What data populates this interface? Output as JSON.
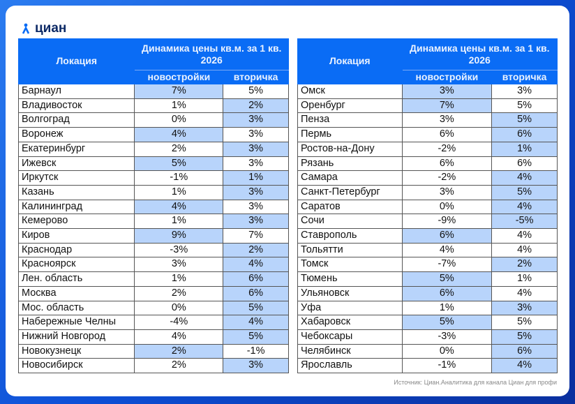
{
  "logo": {
    "text": "циан",
    "icon": "cian-logo-icon"
  },
  "colors": {
    "header": "#0a6cf5",
    "highlight": "#b8d4fb"
  },
  "header": {
    "location": "Локация",
    "dynamics": "Динамика цены кв.м. за 1 кв. 2026",
    "new": "новостройки",
    "secondary": "вторичка"
  },
  "left_table": [
    {
      "city": "Барнаул",
      "new": "7%",
      "sec": "5%",
      "hl": "new"
    },
    {
      "city": "Владивосток",
      "new": "1%",
      "sec": "2%",
      "hl": "sec"
    },
    {
      "city": "Волгоград",
      "new": "0%",
      "sec": "3%",
      "hl": "sec"
    },
    {
      "city": "Воронеж",
      "new": "4%",
      "sec": "3%",
      "hl": "new"
    },
    {
      "city": "Екатеринбург",
      "new": "2%",
      "sec": "3%",
      "hl": "sec"
    },
    {
      "city": "Ижевск",
      "new": "5%",
      "sec": "3%",
      "hl": "new"
    },
    {
      "city": "Иркутск",
      "new": "-1%",
      "sec": "1%",
      "hl": "sec"
    },
    {
      "city": "Казань",
      "new": "1%",
      "sec": "3%",
      "hl": "sec"
    },
    {
      "city": "Калининград",
      "new": "4%",
      "sec": "3%",
      "hl": "new"
    },
    {
      "city": "Кемерово",
      "new": "1%",
      "sec": "3%",
      "hl": "sec"
    },
    {
      "city": "Киров",
      "new": "9%",
      "sec": "7%",
      "hl": "new"
    },
    {
      "city": "Краснодар",
      "new": "-3%",
      "sec": "2%",
      "hl": "sec"
    },
    {
      "city": "Красноярск",
      "new": "3%",
      "sec": "4%",
      "hl": "sec"
    },
    {
      "city": "Лен. область",
      "new": "1%",
      "sec": "6%",
      "hl": "sec"
    },
    {
      "city": "Москва",
      "new": "2%",
      "sec": "6%",
      "hl": "sec"
    },
    {
      "city": "Мос. область",
      "new": "0%",
      "sec": "5%",
      "hl": "sec"
    },
    {
      "city": "Набережные Челны",
      "new": "-4%",
      "sec": "4%",
      "hl": "sec"
    },
    {
      "city": "Нижний Новгород",
      "new": "4%",
      "sec": "5%",
      "hl": "sec"
    },
    {
      "city": "Новокузнецк",
      "new": "2%",
      "sec": "-1%",
      "hl": "new"
    },
    {
      "city": "Новосибирск",
      "new": "2%",
      "sec": "3%",
      "hl": "sec"
    }
  ],
  "right_table": [
    {
      "city": "Омск",
      "new": "3%",
      "sec": "3%",
      "hl": "new"
    },
    {
      "city": "Оренбург",
      "new": "7%",
      "sec": "5%",
      "hl": "new"
    },
    {
      "city": "Пенза",
      "new": "3%",
      "sec": "5%",
      "hl": "sec"
    },
    {
      "city": "Пермь",
      "new": "6%",
      "sec": "6%",
      "hl": "sec"
    },
    {
      "city": "Ростов-на-Дону",
      "new": "-2%",
      "sec": "1%",
      "hl": "sec"
    },
    {
      "city": "Рязань",
      "new": "6%",
      "sec": "6%",
      "hl": ""
    },
    {
      "city": "Самара",
      "new": "-2%",
      "sec": "4%",
      "hl": "sec"
    },
    {
      "city": "Санкт-Петербург",
      "new": "3%",
      "sec": "5%",
      "hl": "sec"
    },
    {
      "city": "Саратов",
      "new": "0%",
      "sec": "4%",
      "hl": "sec"
    },
    {
      "city": "Сочи",
      "new": "-9%",
      "sec": "-5%",
      "hl": "sec"
    },
    {
      "city": "Ставрополь",
      "new": "6%",
      "sec": "4%",
      "hl": "new"
    },
    {
      "city": "Тольятти",
      "new": "4%",
      "sec": "4%",
      "hl": ""
    },
    {
      "city": "Томск",
      "new": "-7%",
      "sec": "2%",
      "hl": "sec"
    },
    {
      "city": "Тюмень",
      "new": "5%",
      "sec": "1%",
      "hl": "new"
    },
    {
      "city": "Ульяновск",
      "new": "6%",
      "sec": "4%",
      "hl": "new"
    },
    {
      "city": "Уфа",
      "new": "1%",
      "sec": "3%",
      "hl": "sec"
    },
    {
      "city": "Хабаровск",
      "new": "5%",
      "sec": "5%",
      "hl": "new"
    },
    {
      "city": "Чебоксары",
      "new": "-3%",
      "sec": "5%",
      "hl": "sec"
    },
    {
      "city": "Челябинск",
      "new": "0%",
      "sec": "6%",
      "hl": "sec"
    },
    {
      "city": "Ярославль",
      "new": "-1%",
      "sec": "4%",
      "hl": "sec"
    }
  ],
  "source": "Источник: Циан.Аналитика для канала Циан для профи"
}
